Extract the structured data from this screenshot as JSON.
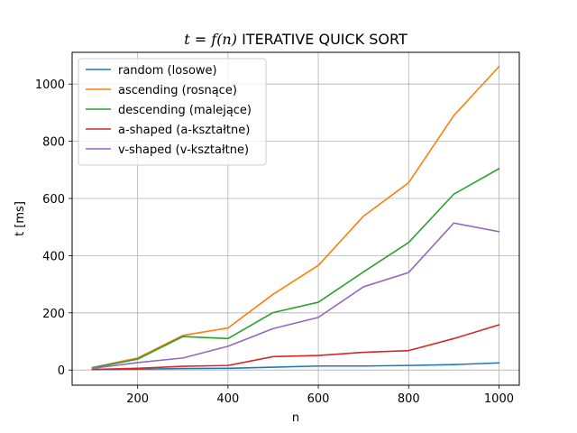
{
  "chart_data": {
    "type": "line",
    "title_prefix": "t = f(n)",
    "title_math_t": "t",
    "title_math_eq": " = ",
    "title_math_f": "f",
    "title_math_n": "(n)",
    "title_rest": " ITERATIVE QUICK SORT",
    "xlabel": "n",
    "ylabel": "t [ms]",
    "x": [
      100,
      200,
      300,
      400,
      500,
      600,
      700,
      800,
      900,
      1000
    ],
    "xlim": [
      55,
      1045
    ],
    "ylim": [
      -53,
      1111
    ],
    "xticks": [
      200,
      400,
      600,
      800,
      1000
    ],
    "yticks": [
      0,
      200,
      400,
      600,
      800,
      1000
    ],
    "grid": true,
    "legend_position": "top-left",
    "series": [
      {
        "name": "random (losowe)",
        "color": "#1f77b4",
        "values": [
          2,
          3,
          5,
          6,
          10,
          14,
          14,
          16,
          19,
          25
        ]
      },
      {
        "name": "ascending (rosnące)",
        "color": "#ff7f0e",
        "values": [
          9,
          42,
          121,
          147,
          265,
          366,
          538,
          655,
          890,
          1061
        ]
      },
      {
        "name": "descending (malejące)",
        "color": "#2ca02c",
        "values": [
          8,
          38,
          117,
          110,
          201,
          237,
          343,
          446,
          615,
          704
        ]
      },
      {
        "name": "a-shaped (a-kształtne)",
        "color": "#d62728",
        "values": [
          2,
          6,
          13,
          16,
          47,
          51,
          62,
          68,
          110,
          158
        ]
      },
      {
        "name": "v-shaped (v-kształtne)",
        "color": "#9467bd",
        "values": [
          6,
          26,
          42,
          83,
          145,
          184,
          291,
          341,
          514,
          484
        ]
      }
    ]
  }
}
